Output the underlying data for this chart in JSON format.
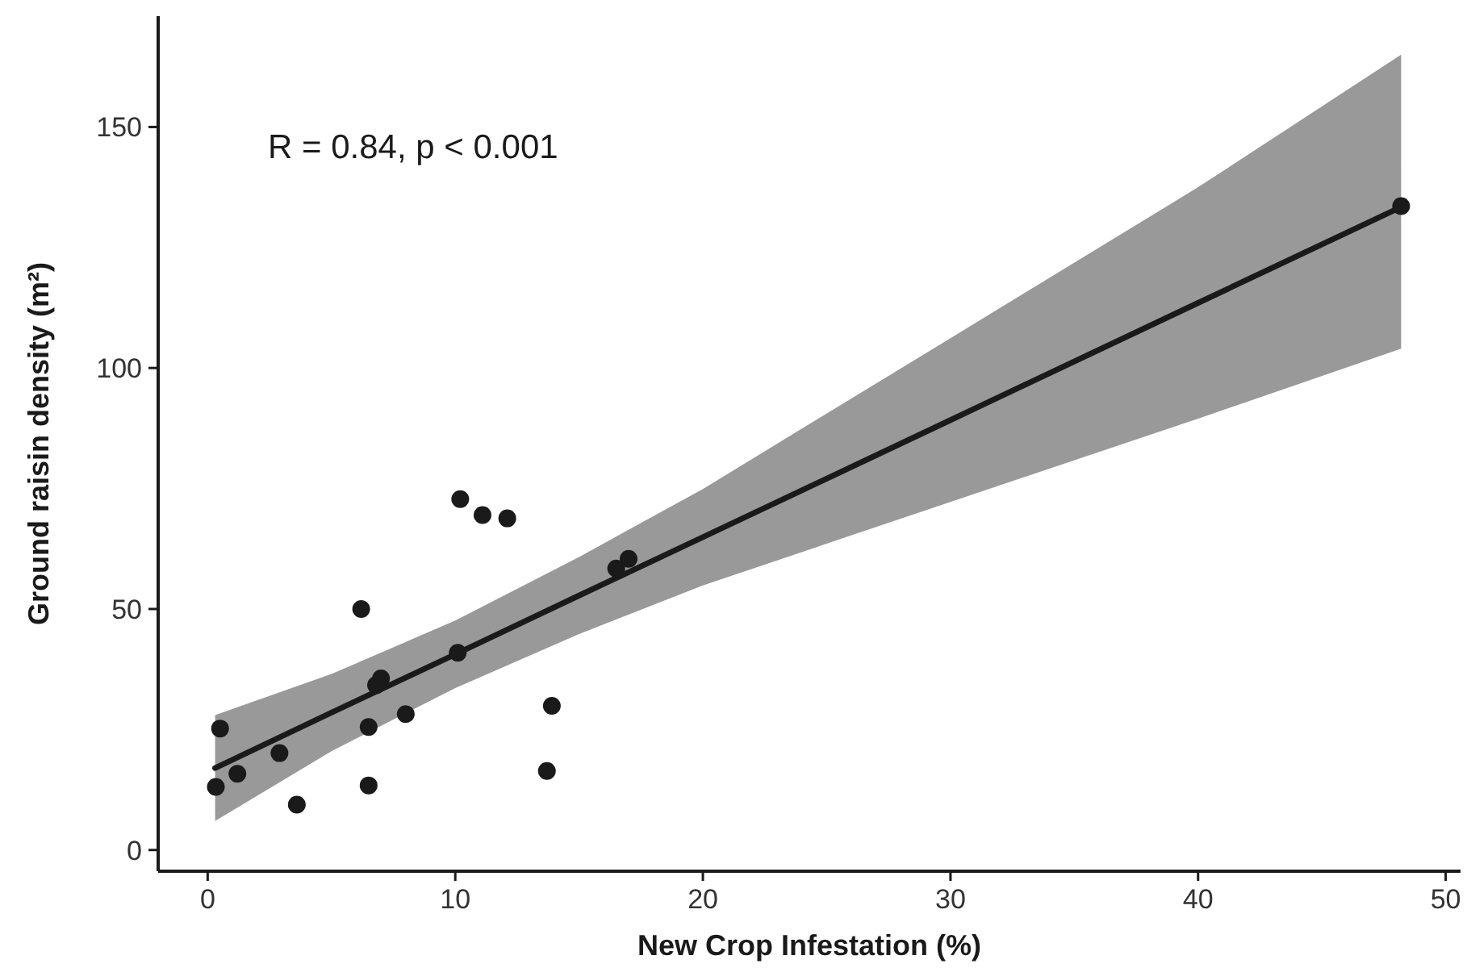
{
  "chart_data": {
    "type": "scatter",
    "xlabel": "New Crop Infestation (%)",
    "ylabel": "Ground raisin density (m²)",
    "annotations": [
      "R = 0.84, p < 0.001"
    ],
    "xlim": [
      -2,
      50.6
    ],
    "ylim": [
      -4.4,
      173
    ],
    "xticks": [
      0,
      10,
      20,
      30,
      40,
      50
    ],
    "yticks": [
      0,
      50,
      100,
      150
    ],
    "grid": false,
    "marker": "circle",
    "series": [
      {
        "type": "line",
        "color": "#1a1a1a",
        "line_style": "solid",
        "marker": "none",
        "x": [
          0.3,
          5,
          10,
          15,
          20,
          30,
          40,
          48.2
        ],
        "values": [
          17.0,
          28.5,
          40.6,
          52.8,
          64.9,
          89.2,
          113.5,
          133.4
        ],
        "lower": [
          6,
          20.5,
          33.6,
          44.8,
          54.9,
          72.2,
          89.5,
          104
        ],
        "upper": [
          28,
          36.5,
          47.6,
          60.8,
          74.9,
          106.2,
          137.5,
          165
        ]
      },
      {
        "color": "#1a1a1a",
        "x": [
          0.33,
          0.5,
          1.2,
          2.9,
          3.6,
          6.2,
          6.5,
          6.5,
          6.8,
          7.0,
          8.0,
          10.1,
          10.2,
          11.1,
          12.1,
          13.9,
          13.7,
          16.5,
          17.0,
          48.2
        ],
        "values": [
          13.1,
          25.2,
          15.8,
          20.1,
          9.4,
          50,
          25.5,
          13.4,
          34.2,
          35.6,
          28.2,
          40.9,
          72.8,
          69.5,
          68.8,
          29.9,
          16.4,
          58.4,
          60.4,
          133.6
        ]
      }
    ]
  }
}
